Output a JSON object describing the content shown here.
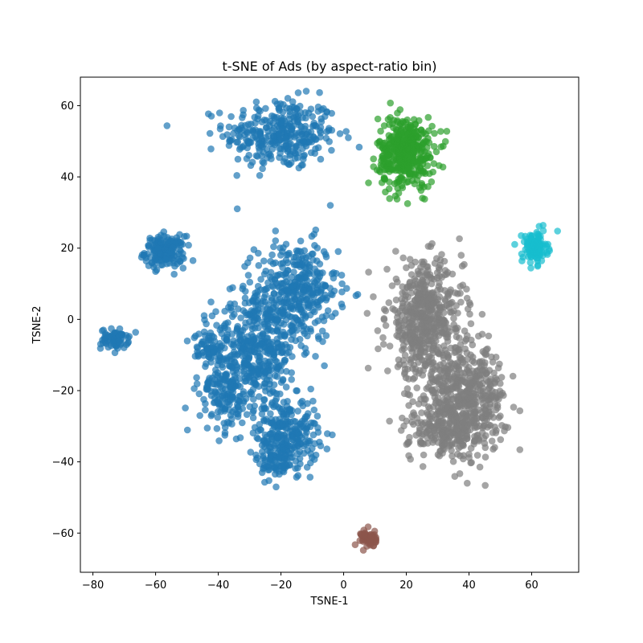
{
  "chart_data": {
    "type": "scatter",
    "title": "t-SNE of Ads (by aspect-ratio bin)",
    "xlabel": "TSNE-1",
    "ylabel": "TSNE-2",
    "xlim": [
      -84,
      75
    ],
    "ylim": [
      -71,
      68
    ],
    "xticks": [
      -80,
      -60,
      -40,
      -20,
      0,
      20,
      40,
      60
    ],
    "yticks": [
      -60,
      -40,
      -20,
      0,
      20,
      40,
      60
    ],
    "grid": false,
    "legend": "none",
    "marker_alpha": 0.7,
    "series": [
      {
        "color": "#1f77b4",
        "clusters": [
          {
            "cx": -20,
            "cy": 52,
            "sx": 9,
            "sy": 5,
            "n": 330
          },
          {
            "cx": -57,
            "cy": 19,
            "sx": 3.2,
            "sy": 2.2,
            "n": 170
          },
          {
            "cx": -73,
            "cy": -5.5,
            "sx": 2.2,
            "sy": 1.4,
            "n": 70
          },
          {
            "cx": -15,
            "cy": 8,
            "sx": 6.5,
            "sy": 7,
            "n": 360
          },
          {
            "cx": -28,
            "cy": -8,
            "sx": 7,
            "sy": 8,
            "n": 420
          },
          {
            "cx": -38,
            "cy": -20,
            "sx": 4,
            "sy": 6,
            "n": 160
          },
          {
            "cx": -18,
            "cy": -32,
            "sx": 5,
            "sy": 5,
            "n": 260
          },
          {
            "cx": -44,
            "cy": -7,
            "sx": 1.8,
            "sy": 2,
            "n": 40
          },
          {
            "cx": -22,
            "cy": -40,
            "sx": 3,
            "sy": 3,
            "n": 60
          }
        ]
      },
      {
        "color": "#2ca02c",
        "clusters": [
          {
            "cx": 20,
            "cy": 47,
            "sx": 4.5,
            "sy": 5,
            "n": 420
          }
        ]
      },
      {
        "color": "#17becf",
        "clusters": [
          {
            "cx": 61,
            "cy": 20,
            "sx": 2,
            "sy": 2.2,
            "n": 120
          }
        ]
      },
      {
        "color": "#7f7f7f",
        "clusters": [
          {
            "cx": 26,
            "cy": 0,
            "sx": 6,
            "sy": 8,
            "n": 520
          },
          {
            "cx": 38,
            "cy": -22,
            "sx": 7,
            "sy": 7,
            "n": 520
          },
          {
            "cx": 33,
            "cy": -32,
            "sx": 6,
            "sy": 3.5,
            "n": 160
          }
        ]
      },
      {
        "color": "#8c564b",
        "clusters": [
          {
            "cx": 8,
            "cy": -61.5,
            "sx": 1.2,
            "sy": 1.2,
            "n": 60
          }
        ]
      }
    ]
  }
}
